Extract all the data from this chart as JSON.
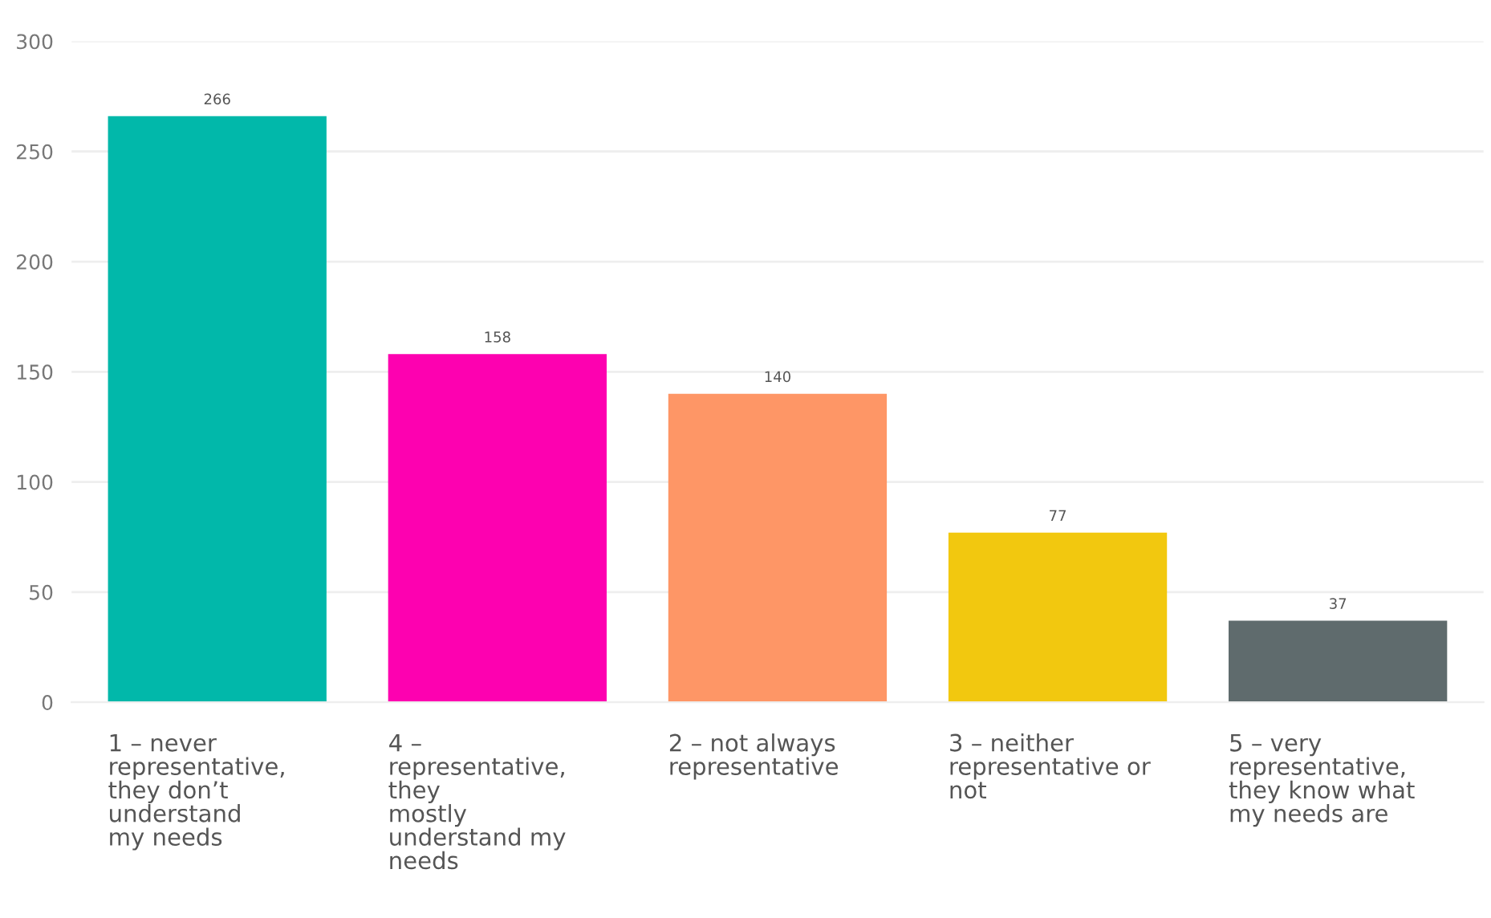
{
  "chart_data": {
    "type": "bar",
    "categories": [
      "1 – never\nrepresentative,\nthey don’t\nunderstand\nmy needs",
      "4 –\nrepresentative,\nthey\nmostly\nunderstand my\nneeds",
      "2 – not always\nrepresentative",
      "3 – neither\nrepresentative or\nnot",
      "5 – very\nrepresentative,\nthey know what\nmy needs are"
    ],
    "values": [
      266,
      158,
      140,
      77,
      37
    ],
    "colors": [
      "#01b8aa",
      "#fd01b0",
      "#fe9666",
      "#f2c80f",
      "#5f6b6d"
    ],
    "ylim": [
      0,
      300
    ],
    "yticks": [
      0,
      50,
      100,
      150,
      200,
      250,
      300
    ],
    "grid": "y",
    "data_labels": true
  }
}
